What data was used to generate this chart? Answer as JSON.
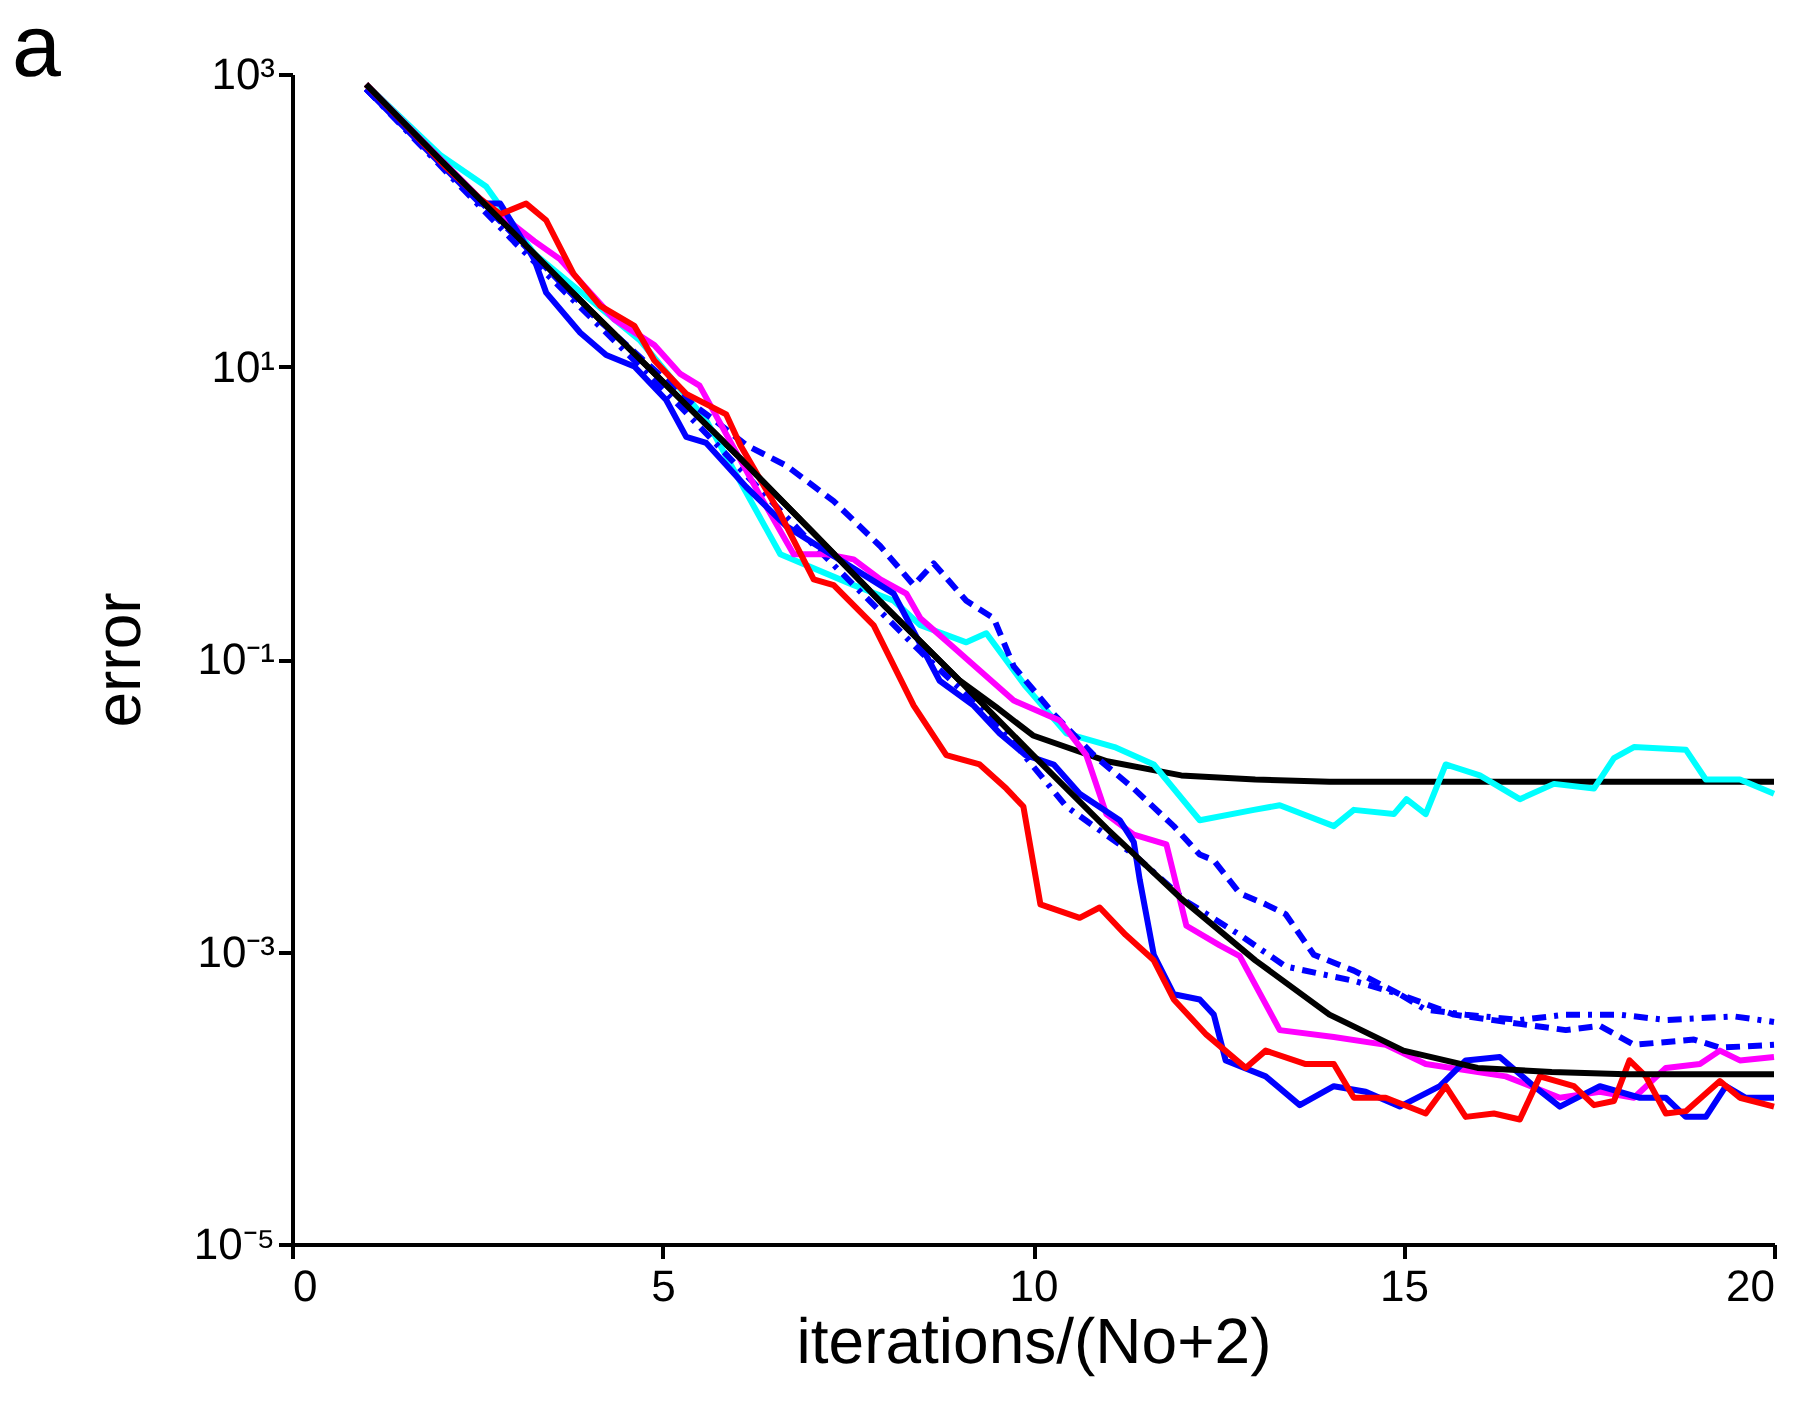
{
  "chart_data": {
    "type": "line",
    "xlabel": "iterations/(No+2)",
    "ylabel": "error",
    "annotations": [
      "a"
    ],
    "xlim": [
      0,
      20
    ],
    "xticks": [
      0,
      5,
      10,
      15,
      20
    ],
    "ylim": [
      1e-05,
      1000
    ],
    "yticks": [
      {
        "value": 1000,
        "label": "10³"
      },
      {
        "value": 10,
        "label": "10¹"
      },
      {
        "value": 0.1,
        "label": "10⁻¹"
      },
      {
        "value": 0.001,
        "label": "10⁻³"
      },
      {
        "value": 1e-05,
        "label": "10⁻⁵"
      }
    ],
    "log": true,
    "grid": false,
    "marker": "none",
    "series": [
      {
        "color": "#000000",
        "line_style": "solid",
        "x": [
          1,
          2,
          3,
          4,
          5,
          6,
          7,
          8,
          9,
          9.5,
          10,
          11,
          12,
          13,
          14,
          20
        ],
        "values": [
          850,
          260,
          81,
          25,
          7.9,
          2.5,
          0.76,
          0.23,
          0.072,
          0.047,
          0.03,
          0.02,
          0.016,
          0.015,
          0.0145,
          0.0145
        ]
      },
      {
        "color": "#00ffff",
        "line_style": "solid",
        "x": [
          1,
          2.0,
          2.62,
          3.27,
          3.7,
          4.7,
          5.59,
          6.59,
          7.58,
          8.12,
          8.48,
          9.1,
          9.37,
          9.9,
          10.45,
          11.1,
          11.63,
          12.25,
          12.98,
          13.33,
          14.06,
          14.33,
          14.87,
          15.04,
          15.3,
          15.57,
          16.03,
          16.57,
          17.03,
          17.57,
          17.84,
          18.11,
          18.81,
          19.08,
          19.54,
          20
        ],
        "values": [
          850,
          280,
          170,
          59,
          39,
          15,
          4.3,
          0.52,
          0.32,
          0.25,
          0.17,
          0.13,
          0.15,
          0.065,
          0.031,
          0.025,
          0.019,
          0.0079,
          0.0093,
          0.01,
          0.0072,
          0.0093,
          0.0087,
          0.011,
          0.0087,
          0.019,
          0.016,
          0.011,
          0.014,
          0.013,
          0.021,
          0.025,
          0.024,
          0.015,
          0.015,
          0.012
        ]
      },
      {
        "color": "#0000ff",
        "line_style": "dashed",
        "x": [
          1,
          3,
          4,
          5.43,
          5.7,
          6.13,
          6.67,
          7.31,
          7.94,
          8.39,
          8.66,
          9.1,
          9.47,
          9.74,
          10.28,
          10.82,
          11.36,
          11.9,
          12.25,
          12.44,
          12.79,
          13.14,
          13.41,
          13.79,
          14.33,
          14.95,
          15.68,
          16.57,
          17.19,
          17.65,
          18.11,
          18.92,
          19.27,
          20
        ],
        "values": [
          790,
          79,
          24,
          5.4,
          4.3,
          2.9,
          2.1,
          1.2,
          0.59,
          0.32,
          0.45,
          0.25,
          0.19,
          0.089,
          0.042,
          0.022,
          0.013,
          0.0072,
          0.0046,
          0.0042,
          0.0025,
          0.0021,
          0.0018,
          0.00095,
          0.00074,
          0.00051,
          0.00037,
          0.00032,
          0.00029,
          0.00031,
          0.00023,
          0.00025,
          0.00022,
          0.00023
        ]
      },
      {
        "color": "#0000ff",
        "line_style": "dashdot",
        "x": [
          1,
          3,
          5,
          7,
          8.5,
          9.55,
          10.45,
          11.36,
          12.07,
          12.79,
          13.41,
          14.33,
          14.95,
          15.3,
          15.84,
          16.57,
          17.19,
          17.92,
          18.54,
          19.46,
          20
        ],
        "values": [
          790,
          71,
          7.1,
          0.63,
          0.11,
          0.035,
          0.0098,
          0.0046,
          0.0022,
          0.0013,
          0.00079,
          0.00063,
          0.00051,
          0.0004,
          0.00037,
          0.00034,
          0.00037,
          0.00037,
          0.00034,
          0.00036,
          0.00033
        ]
      },
      {
        "color": "#ff00ff",
        "line_style": "solid",
        "x": [
          1,
          2.54,
          3.27,
          3.62,
          4.35,
          4.89,
          5.24,
          5.5,
          6.32,
          6.77,
          7.21,
          7.58,
          7.94,
          8.29,
          8.48,
          8.93,
          9.74,
          10.36,
          10.72,
          10.99,
          11.36,
          11.8,
          12.07,
          12.52,
          12.79,
          13.33,
          14.06,
          14.76,
          15.3,
          16.38,
          17.11,
          17.65,
          18.11,
          18.54,
          19.0,
          19.27,
          19.54,
          20
        ],
        "values": [
          850,
          140,
          72,
          54,
          21,
          14,
          8.9,
          7.4,
          1.3,
          0.52,
          0.52,
          0.48,
          0.35,
          0.28,
          0.19,
          0.12,
          0.052,
          0.038,
          0.022,
          0.0087,
          0.0063,
          0.0054,
          0.0015,
          0.0011,
          0.00093,
          0.00029,
          0.00026,
          0.00023,
          0.00017,
          0.00014,
          0.0001,
          0.00011,
          0.0001,
          0.00016,
          0.00017,
          0.00021,
          0.00018,
          0.00019
        ]
      },
      {
        "color": "#0000ff",
        "line_style": "solid",
        "x": [
          1,
          2.54,
          2.81,
          3.27,
          3.43,
          3.89,
          4.24,
          4.62,
          5.05,
          5.32,
          5.59,
          6.13,
          6.67,
          8.12,
          8.74,
          9.2,
          9.55,
          9.9,
          10.28,
          10.63,
          11.17,
          11.36,
          11.44,
          11.63,
          11.9,
          12.25,
          12.44,
          12.6,
          13.14,
          13.6,
          14.06,
          14.49,
          14.95,
          15.49,
          15.84,
          16.3,
          16.76,
          17.11,
          17.65,
          18.19,
          18.54,
          18.81,
          19.08,
          19.35,
          19.62,
          20
        ],
        "values": [
          790,
          130,
          130,
          54,
          32,
          17,
          12,
          10,
          5.9,
          3.3,
          3.0,
          1.5,
          0.81,
          0.28,
          0.071,
          0.048,
          0.031,
          0.022,
          0.019,
          0.012,
          0.0079,
          0.0056,
          0.0031,
          0.00095,
          0.00051,
          0.00047,
          0.00037,
          0.00018,
          0.00014,
          8.9e-05,
          0.00012,
          0.00011,
          8.7e-05,
          0.00012,
          0.00018,
          0.00019,
          0.00012,
          8.7e-05,
          0.00012,
          0.0001,
          0.0001,
          7.4e-05,
          7.4e-05,
          0.00012,
          0.0001,
          0.0001
        ]
      },
      {
        "color": "#ff0000",
        "line_style": "solid",
        "x": [
          1,
          1.65,
          2.08,
          2.54,
          2.81,
          3.16,
          3.43,
          3.8,
          4.16,
          4.62,
          4.89,
          5.32,
          5.86,
          6.05,
          6.59,
          7.04,
          7.31,
          7.85,
          8.39,
          8.83,
          9.28,
          9.64,
          9.87,
          10.1,
          10.63,
          10.9,
          11.25,
          11.63,
          11.9,
          12.34,
          12.87,
          13.14,
          13.68,
          14.06,
          14.33,
          14.76,
          15.3,
          15.57,
          15.84,
          16.22,
          16.57,
          16.84,
          17.3,
          17.57,
          17.84,
          18.05,
          18.27,
          18.54,
          18.81,
          19.27,
          19.54,
          20
        ],
        "values": [
          850,
          390,
          230,
          140,
          110,
          130,
          100,
          43,
          26,
          19,
          11,
          6.5,
          4.7,
          2.9,
          0.98,
          0.35,
          0.32,
          0.17,
          0.048,
          0.022,
          0.019,
          0.013,
          0.0098,
          0.0021,
          0.0017,
          0.002,
          0.0013,
          0.00087,
          0.00047,
          0.00027,
          0.00016,
          0.00021,
          0.00017,
          0.00017,
          0.0001,
          0.0001,
          7.8e-05,
          0.00012,
          7.4e-05,
          7.8e-05,
          7.1e-05,
          0.00014,
          0.00012,
          8.9e-05,
          9.5e-05,
          0.00018,
          0.00014,
          7.8e-05,
          8.1e-05,
          0.00013,
          0.0001,
          8.7e-05
        ]
      },
      {
        "color": "#000000",
        "line_style": "solid",
        "x": [
          1,
          2,
          3,
          4,
          5,
          6,
          7,
          8,
          9,
          10,
          11,
          12,
          13,
          14,
          15,
          16,
          17,
          18,
          20
        ],
        "values": [
          850,
          260,
          81,
          25,
          7.9,
          2.5,
          0.76,
          0.23,
          0.072,
          0.022,
          0.0069,
          0.0023,
          0.00087,
          0.00037,
          0.00021,
          0.00016,
          0.00015,
          0.000145,
          0.000145
        ]
      }
    ]
  }
}
